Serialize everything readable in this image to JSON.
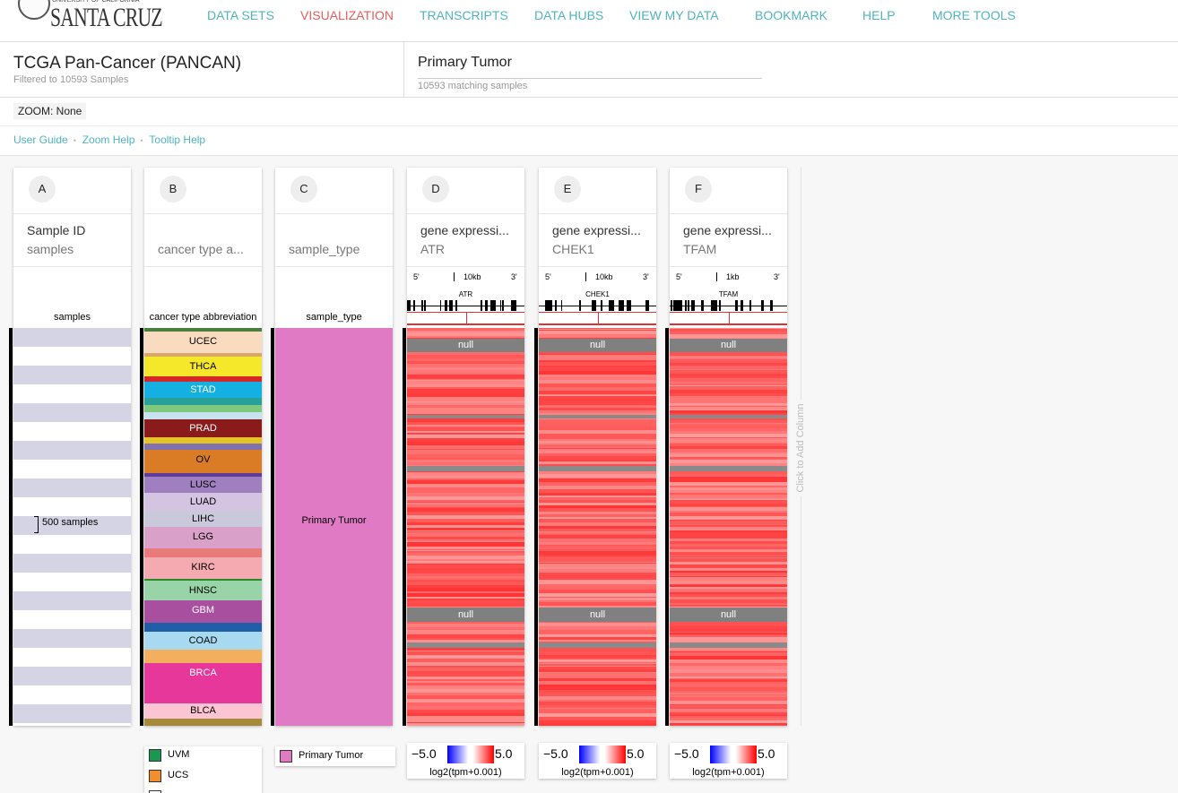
{
  "logo": {
    "university": "UNIVERSITY OF CALIFORNIA",
    "campus": "SANTA CRUZ"
  },
  "nav": [
    "DATA SETS",
    "VISUALIZATION",
    "TRANSCRIPTS",
    "DATA HUBS",
    "VIEW MY DATA",
    "BOOKMARK",
    "HELP",
    "MORE TOOLS"
  ],
  "header": {
    "title": "TCGA Pan-Cancer (PANCAN)",
    "subtitle": "Filtered to 10593 Samples",
    "filter": "Primary Tumor",
    "filter_note": "10593 matching samples"
  },
  "zoom": "ZOOM: None",
  "help_links": [
    "User Guide",
    "Zoom Help",
    "Tooltip Help"
  ],
  "columns": [
    {
      "id": "A",
      "title": "Sample ID",
      "subtitle": "samples",
      "label": "samples"
    },
    {
      "id": "B",
      "subtitle": "cancer type a...",
      "label": "cancer type abbreviation"
    },
    {
      "id": "C",
      "subtitle": "sample_type",
      "label": "sample_type"
    },
    {
      "id": "D",
      "title": "gene expressi...",
      "subtitle": "ATR",
      "five": "5'",
      "three": "3'",
      "scale": "10kb",
      "gene": "ATR",
      "null": "null",
      "legend_min": "−5.0",
      "legend_max": "5.0",
      "legend_unit": "log2(tpm+0.001)"
    },
    {
      "id": "E",
      "title": "gene expressi...",
      "subtitle": "CHEK1",
      "five": "5'",
      "three": "3'",
      "scale": "10kb",
      "gene": "CHEK1",
      "null": "null",
      "legend_min": "−5.0",
      "legend_max": "5.0",
      "legend_unit": "log2(tpm+0.001)"
    },
    {
      "id": "F",
      "title": "gene expressi...",
      "subtitle": "TFAM",
      "five": "5'",
      "three": "3'",
      "scale": "1kb",
      "gene": "TFAM",
      "null": "null",
      "legend_min": "−5.0",
      "legend_max": "5.0",
      "legend_unit": "log2(tpm+0.001)"
    }
  ],
  "sample_bracket": "500 samples",
  "cancer_types": [
    {
      "label": null,
      "color": "#4a7f3f"
    },
    {
      "label": "UCEC",
      "color": "#f9dcc0"
    },
    {
      "label": null,
      "color": "#d9a66c"
    },
    {
      "label": "THCA",
      "color": "#f5e82a"
    },
    {
      "label": null,
      "color": "#d62728"
    },
    {
      "label": "STAD",
      "color": "#14b0e2"
    },
    {
      "label": null,
      "color": "#2aa198"
    },
    {
      "label": null,
      "color": "#7fc97f"
    },
    {
      "label": null,
      "color": "#c7e3ef"
    },
    {
      "label": "PRAD",
      "color": "#8b1a1a"
    },
    {
      "label": null,
      "color": "#e6c229"
    },
    {
      "label": null,
      "color": "#8072ac"
    },
    {
      "label": "OV",
      "color": "#d97c25"
    },
    {
      "label": null,
      "color": "#5e3c99"
    },
    {
      "label": "LUSC",
      "color": "#9f7fc0"
    },
    {
      "label": "LUAD",
      "color": "#d4c4e2"
    },
    {
      "label": "LIHC",
      "color": "#c9c9db"
    },
    {
      "label": "LGG",
      "color": "#d9a0c9"
    },
    {
      "label": null,
      "color": "#e87a7a"
    },
    {
      "label": "KIRC",
      "color": "#f5a9b0"
    },
    {
      "label": null,
      "color": "#2a8a2a"
    },
    {
      "label": "HNSC",
      "color": "#98d4a8"
    },
    {
      "label": "GBM",
      "color": "#a94fa0"
    },
    {
      "label": null,
      "color": "#1f5fa8"
    },
    {
      "label": "COAD",
      "color": "#a7daf0"
    },
    {
      "label": null,
      "color": "#f2b05e"
    },
    {
      "label": "BRCA",
      "color": "#e8379a"
    },
    {
      "label": "BLCA",
      "color": "#fbc6d2"
    },
    {
      "label": null,
      "color": "#a58a3c"
    }
  ],
  "sample_type_value": "Primary Tumor",
  "cancer_legend": [
    {
      "label": "UVM",
      "color": "#1a9850"
    },
    {
      "label": "UCS",
      "color": "#f28e2b"
    }
  ],
  "sample_type_legend": {
    "label": "Primary Tumor",
    "color": "#e07ac4"
  },
  "add_column": "Click to Add Column"
}
